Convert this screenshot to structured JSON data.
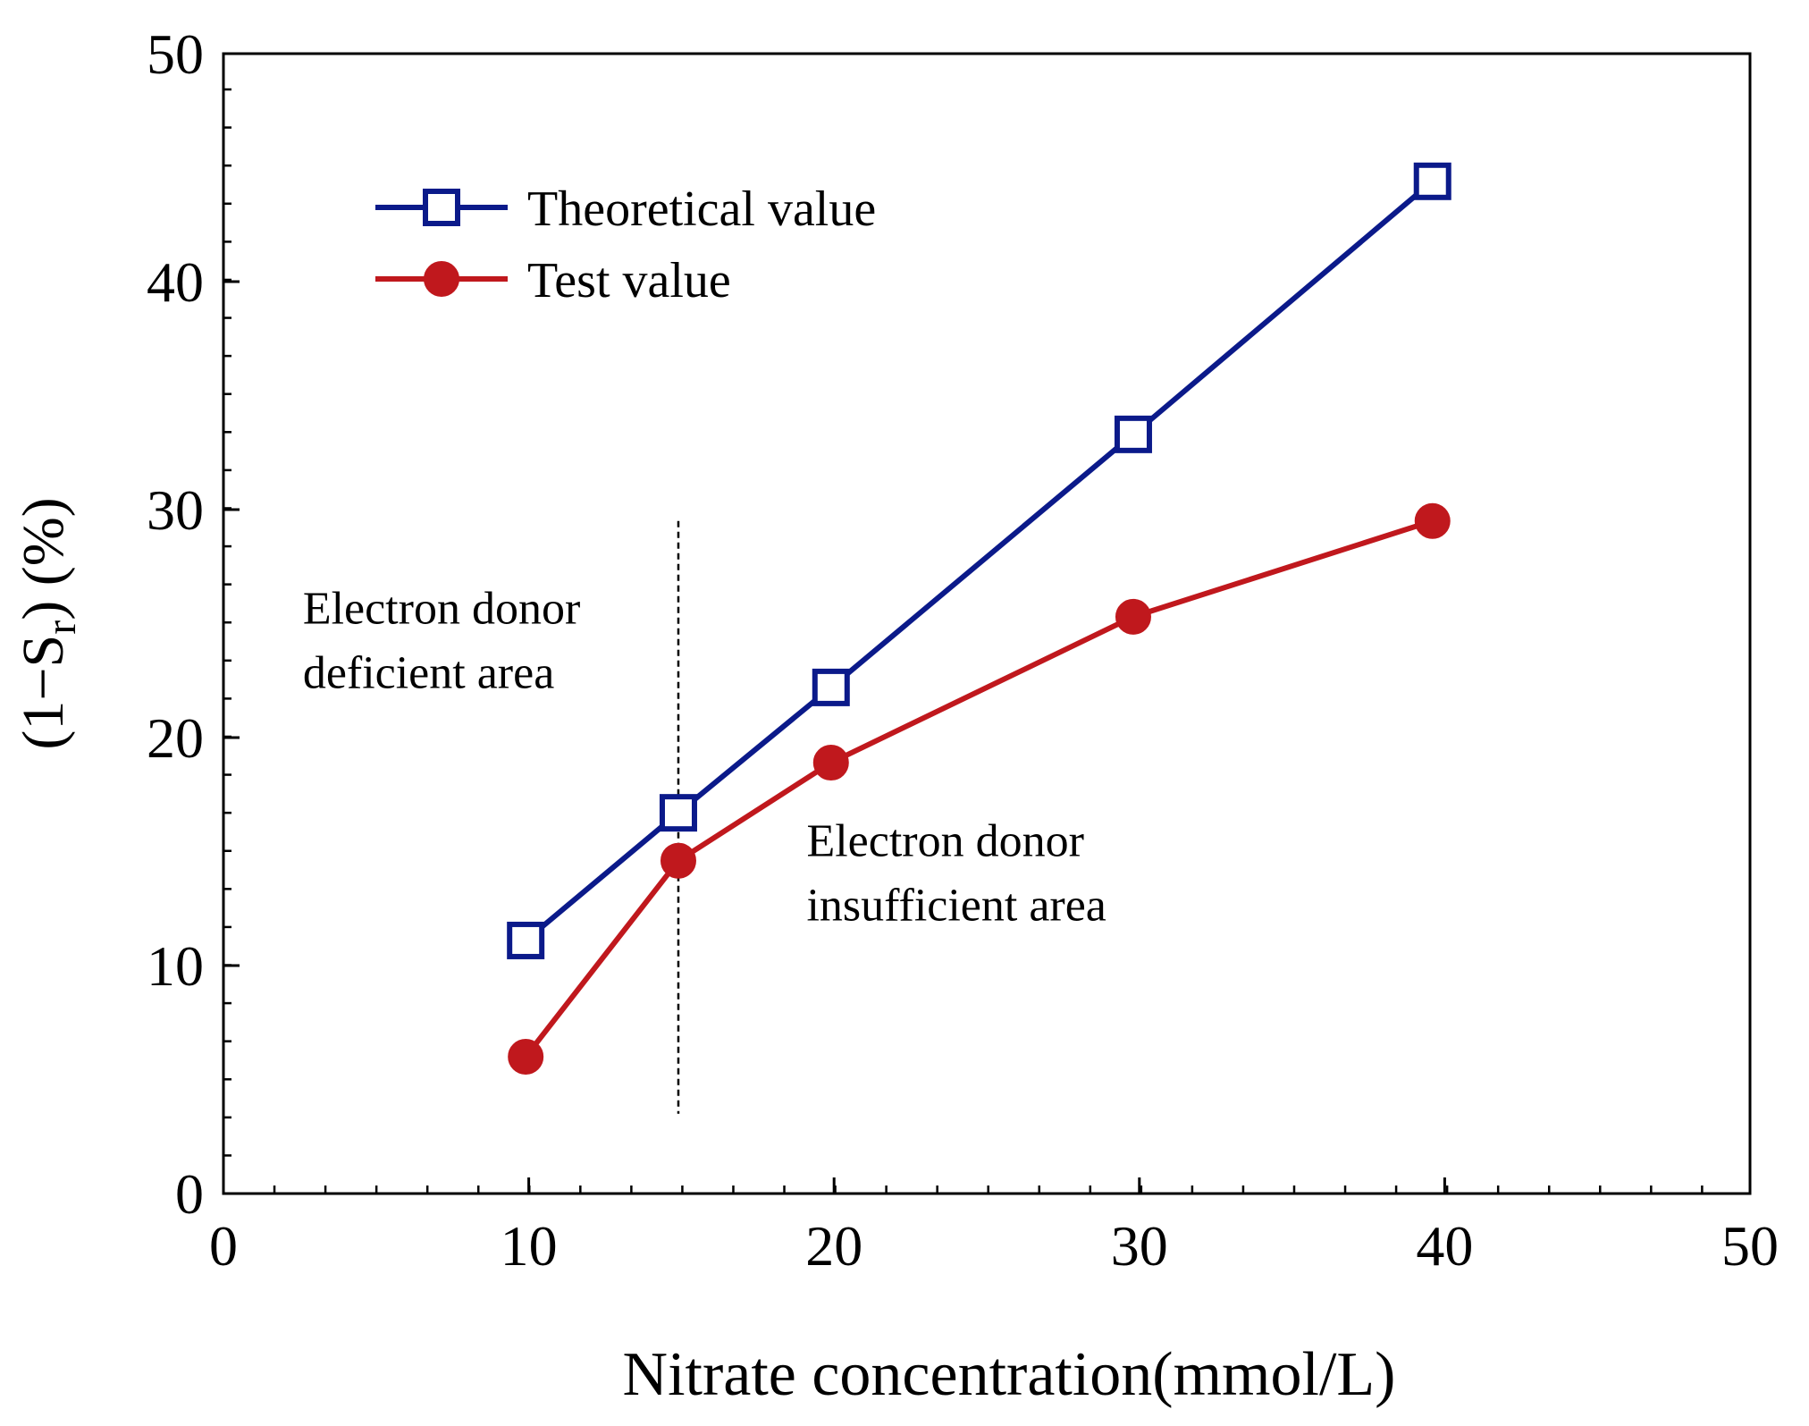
{
  "chart_data": {
    "type": "line",
    "xlabel": "Nitrate concentration(mmol/L)",
    "ylabel": "(1−Sr) (%)",
    "ylabel_parts": {
      "open": "(1−S",
      "sub": "r",
      "close": ") (%)"
    },
    "xlim": [
      0,
      50
    ],
    "ylim": [
      0,
      50
    ],
    "xticks": [
      0,
      10,
      20,
      30,
      40,
      50
    ],
    "yticks": [
      0,
      10,
      20,
      30,
      40,
      50
    ],
    "xtick_labels": [
      "0",
      "10",
      "20",
      "30",
      "40",
      "50"
    ],
    "ytick_labels": [
      "0",
      "10",
      "20",
      "30",
      "40",
      "50"
    ],
    "minor_step": 1.67,
    "grid": false,
    "legend_position": "top-left",
    "series": [
      {
        "name": "Theoretical value",
        "color": "#0b1a8a",
        "marker": "open-square",
        "x": [
          9.9,
          14.9,
          19.9,
          29.8,
          39.6
        ],
        "y": [
          11.1,
          16.7,
          22.2,
          33.3,
          44.4
        ]
      },
      {
        "name": "Test value",
        "color": "#c0181d",
        "marker": "filled-circle",
        "x": [
          9.9,
          14.9,
          19.9,
          29.8,
          39.6
        ],
        "y": [
          6.0,
          14.6,
          18.9,
          25.3,
          29.5
        ]
      }
    ],
    "divider": {
      "x": 14.9,
      "y_range": [
        3.5,
        29.5
      ],
      "style": "dashed"
    },
    "annotations": [
      {
        "lines": [
          "Electron donor",
          "deficient area"
        ],
        "x": 2.6,
        "y": 25.0
      },
      {
        "lines": [
          "Electron donor",
          "insufficient area"
        ],
        "x": 19.1,
        "y": 14.8
      }
    ]
  }
}
